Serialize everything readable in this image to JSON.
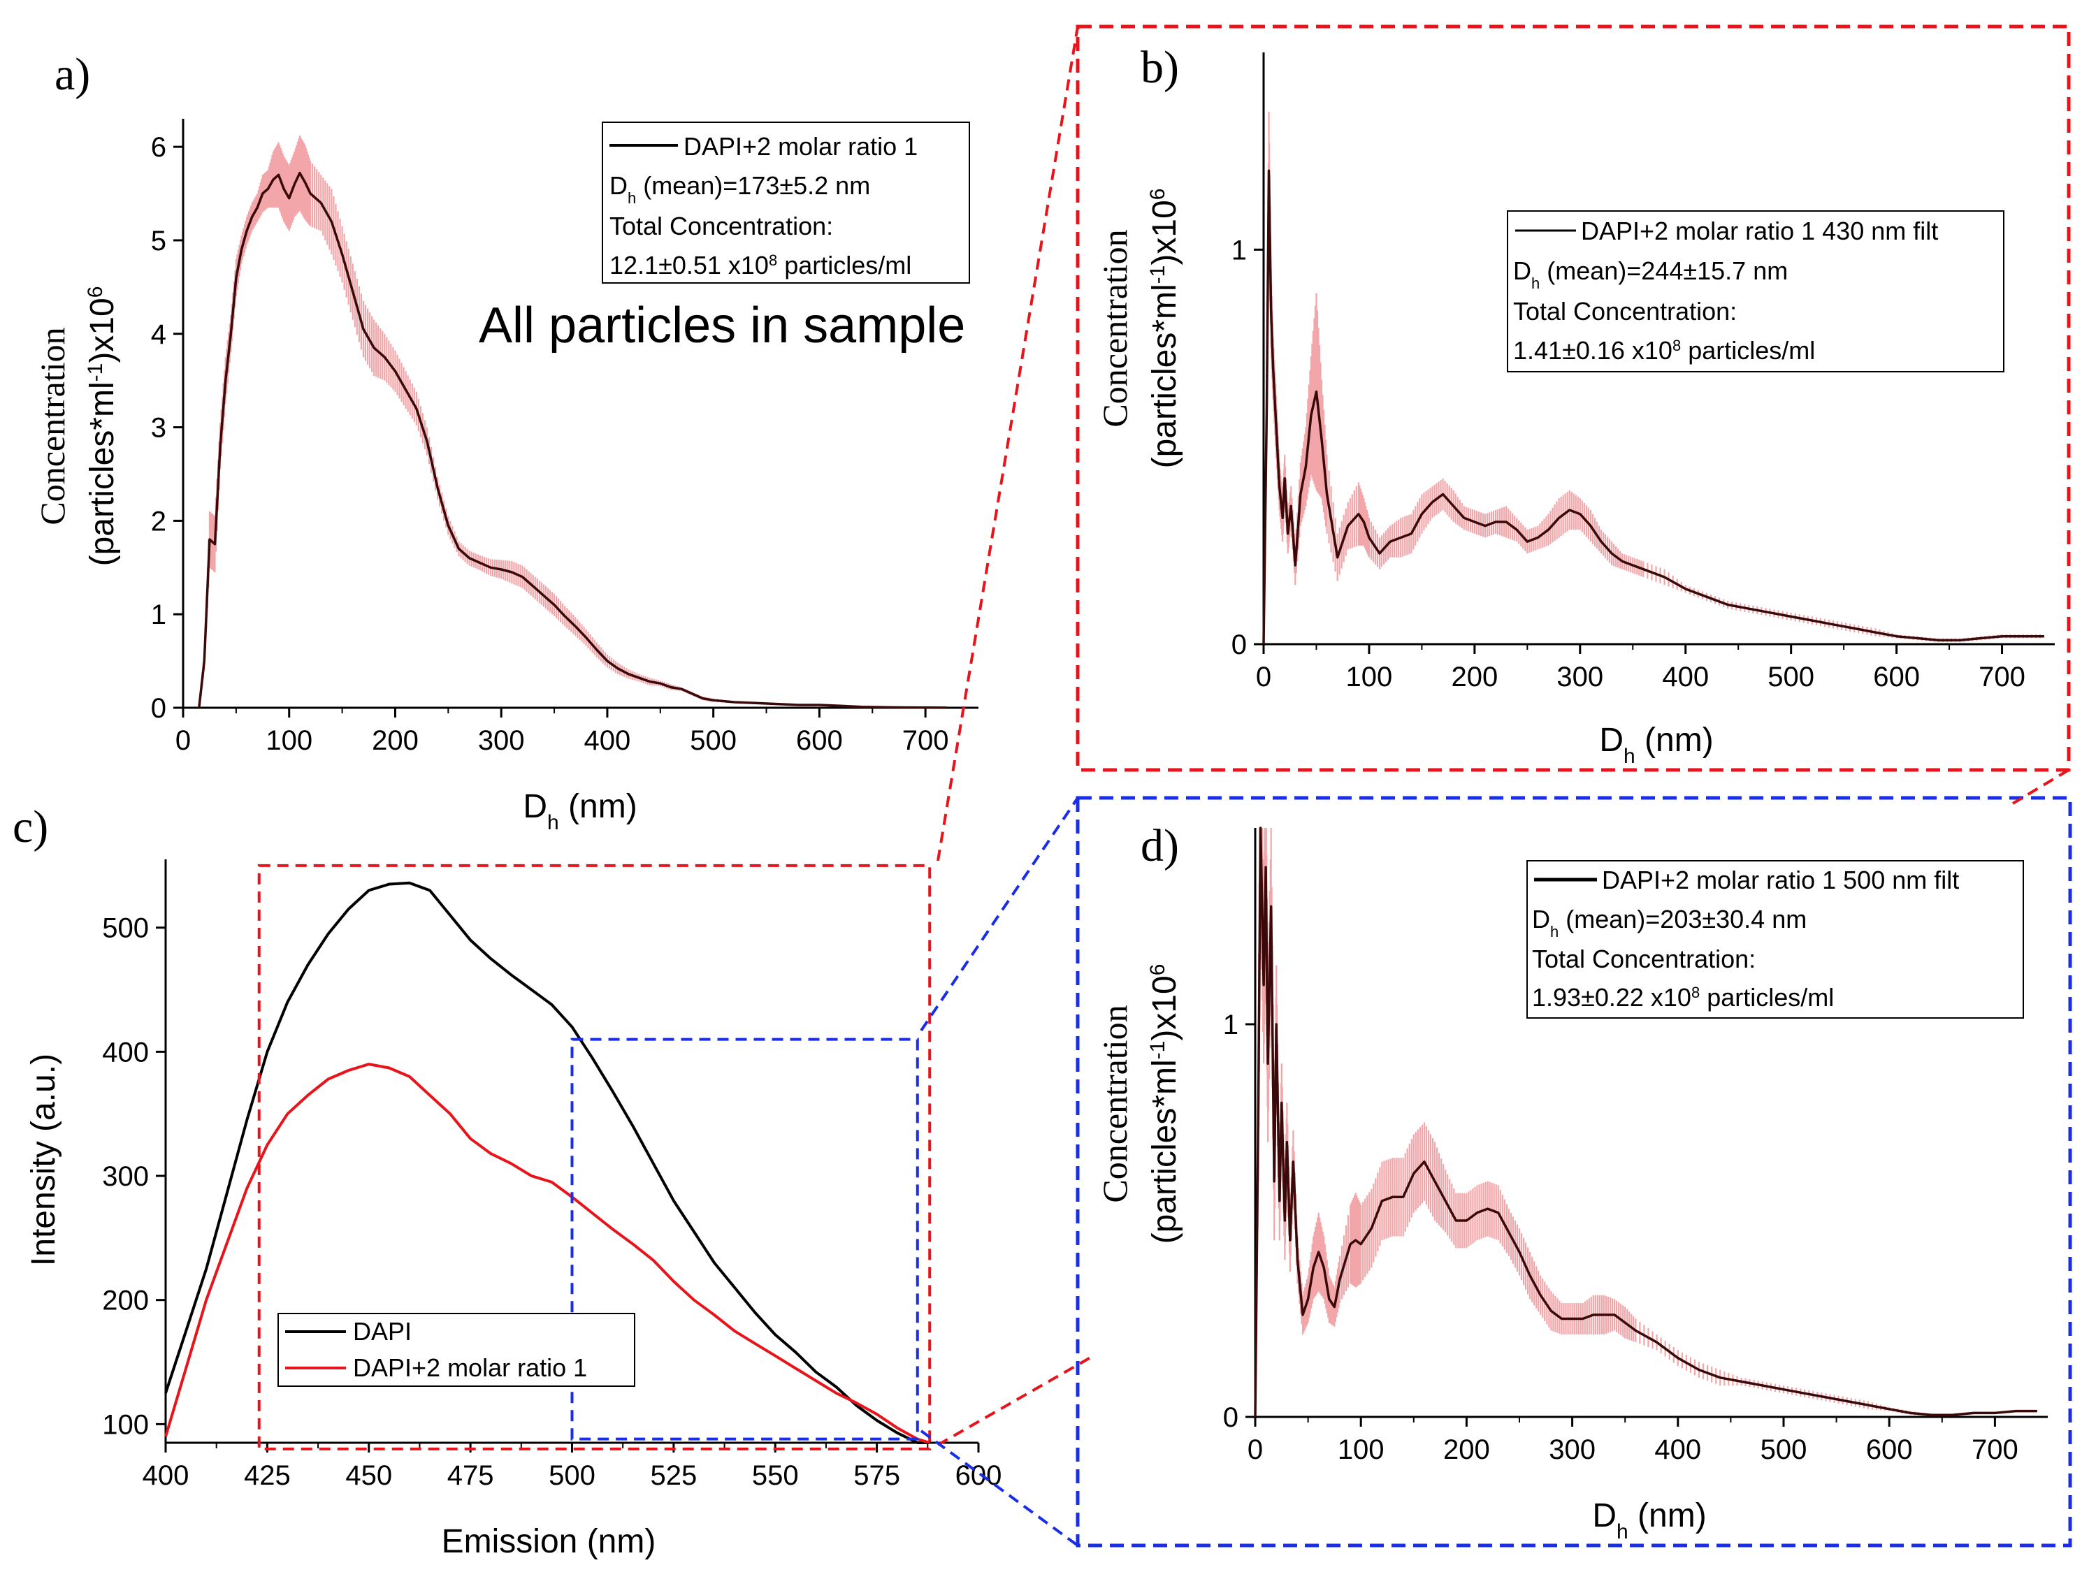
{
  "colors": {
    "red": "#e8141b",
    "blue": "#1a2ee8",
    "black": "#000000",
    "band": "#f3a6a9",
    "curve_dark": "#3a0a0a"
  },
  "chart_data": [
    {
      "id": "a",
      "type": "line",
      "panel_label": "a)",
      "xlabel_main": "D",
      "xlabel_sub": "h",
      "xlabel_unit": " (nm)",
      "ylabel_line1": "Concentration",
      "ylabel_line2_main": "(particles*ml",
      "ylabel_line2_sup1": "-1",
      "ylabel_line2_mid": ")x10",
      "ylabel_line2_sup2": "6",
      "xlim": [
        0,
        750
      ],
      "ylim": [
        0,
        6.3
      ],
      "xticks": [
        0,
        100,
        200,
        300,
        400,
        500,
        600,
        700
      ],
      "yticks": [
        0,
        1,
        2,
        3,
        4,
        5,
        6
      ],
      "annotation": "All particles in sample",
      "legend": {
        "series_name": "DAPI+2   molar ratio 1",
        "dh_prefix": "D",
        "dh_sub": "h",
        "dh_text": " (mean)=173±5.2 nm",
        "total_label": "Total Concentration:",
        "conc_main": "12.1±0.51 x10",
        "conc_sup": "8",
        "conc_unit": " particles/ml"
      },
      "series": [
        {
          "name": "DAPI+2 molar ratio 1",
          "x": [
            15,
            20,
            25,
            30,
            35,
            40,
            45,
            50,
            55,
            60,
            65,
            70,
            75,
            80,
            85,
            90,
            95,
            100,
            105,
            110,
            115,
            120,
            130,
            140,
            150,
            160,
            170,
            180,
            190,
            200,
            210,
            220,
            230,
            240,
            250,
            260,
            270,
            280,
            290,
            300,
            310,
            320,
            330,
            340,
            350,
            360,
            370,
            380,
            390,
            400,
            410,
            420,
            430,
            440,
            450,
            460,
            470,
            480,
            490,
            500,
            520,
            540,
            560,
            580,
            600,
            620,
            640,
            660,
            680,
            700,
            720
          ],
          "y": [
            0,
            0.5,
            1.8,
            1.75,
            2.8,
            3.5,
            4.0,
            4.6,
            4.9,
            5.1,
            5.25,
            5.35,
            5.5,
            5.55,
            5.65,
            5.7,
            5.55,
            5.45,
            5.6,
            5.72,
            5.62,
            5.5,
            5.4,
            5.2,
            4.85,
            4.45,
            4.05,
            3.85,
            3.75,
            3.6,
            3.4,
            3.2,
            2.85,
            2.35,
            1.95,
            1.7,
            1.6,
            1.55,
            1.5,
            1.48,
            1.45,
            1.4,
            1.3,
            1.2,
            1.1,
            0.98,
            0.87,
            0.75,
            0.62,
            0.5,
            0.42,
            0.36,
            0.32,
            0.28,
            0.26,
            0.22,
            0.2,
            0.15,
            0.1,
            0.08,
            0.06,
            0.05,
            0.04,
            0.03,
            0.03,
            0.02,
            0.01,
            0.005,
            0.003,
            0.002,
            0.001
          ],
          "err": [
            0.05,
            0.1,
            0.3,
            0.3,
            0.25,
            0.25,
            0.2,
            0.2,
            0.15,
            0.15,
            0.15,
            0.15,
            0.2,
            0.2,
            0.3,
            0.35,
            0.35,
            0.35,
            0.35,
            0.4,
            0.4,
            0.35,
            0.3,
            0.35,
            0.3,
            0.3,
            0.3,
            0.3,
            0.25,
            0.22,
            0.2,
            0.18,
            0.15,
            0.12,
            0.1,
            0.08,
            0.08,
            0.08,
            0.09,
            0.1,
            0.12,
            0.12,
            0.12,
            0.12,
            0.12,
            0.11,
            0.1,
            0.09,
            0.08,
            0.07,
            0.06,
            0.05,
            0.04,
            0.04,
            0.03,
            0.03,
            0.02,
            0.02,
            0.02,
            0.02,
            0.01,
            0.01,
            0.01,
            0.01,
            0.01,
            0.01,
            0.005,
            0.005,
            0.003,
            0.002,
            0.001
          ]
        }
      ]
    },
    {
      "id": "b",
      "type": "line",
      "panel_label": "b)",
      "xlabel_main": "D",
      "xlabel_sub": "h",
      "xlabel_unit": " (nm)",
      "ylabel_line1": "Concentration",
      "ylabel_line2_main": "(particles*ml",
      "ylabel_line2_sup1": "-1",
      "ylabel_line2_mid": ")x10",
      "ylabel_line2_sup2": "6",
      "xlim": [
        0,
        750
      ],
      "ylim": [
        0,
        1.5
      ],
      "xticks": [
        0,
        100,
        200,
        300,
        400,
        500,
        600,
        700
      ],
      "yticks": [
        0,
        1
      ],
      "legend": {
        "series_name": "DAPI+2   molar ratio 1 430 nm filt",
        "dh_prefix": "D",
        "dh_sub": "h",
        "dh_text": " (mean)=244±15.7 nm",
        "total_label": "Total Concentration:",
        "conc_main": "1.41±0.16 x10",
        "conc_sup": "8",
        "conc_unit": " particles/ml"
      },
      "series": [
        {
          "name": "DAPI+2 molar ratio 1 430 nm filt",
          "x": [
            0,
            3,
            5,
            7,
            9,
            12,
            15,
            18,
            20,
            23,
            26,
            30,
            35,
            40,
            45,
            50,
            55,
            60,
            70,
            80,
            90,
            95,
            100,
            110,
            120,
            130,
            140,
            150,
            160,
            170,
            180,
            190,
            200,
            210,
            220,
            230,
            240,
            250,
            260,
            270,
            280,
            290,
            300,
            310,
            320,
            330,
            340,
            350,
            360,
            380,
            400,
            420,
            440,
            460,
            480,
            500,
            520,
            540,
            560,
            580,
            600,
            620,
            640,
            660,
            680,
            700,
            720,
            740
          ],
          "y": [
            0,
            0.6,
            1.2,
            0.85,
            0.7,
            0.55,
            0.4,
            0.32,
            0.42,
            0.28,
            0.35,
            0.2,
            0.38,
            0.45,
            0.58,
            0.64,
            0.52,
            0.38,
            0.22,
            0.3,
            0.33,
            0.31,
            0.27,
            0.23,
            0.26,
            0.27,
            0.28,
            0.33,
            0.36,
            0.38,
            0.35,
            0.32,
            0.31,
            0.3,
            0.31,
            0.31,
            0.29,
            0.26,
            0.27,
            0.29,
            0.32,
            0.34,
            0.33,
            0.3,
            0.26,
            0.23,
            0.21,
            0.2,
            0.19,
            0.17,
            0.14,
            0.12,
            0.1,
            0.09,
            0.08,
            0.07,
            0.06,
            0.05,
            0.04,
            0.03,
            0.02,
            0.015,
            0.01,
            0.01,
            0.015,
            0.02,
            0.02,
            0.02
          ],
          "err": [
            0,
            0.1,
            0.15,
            0.1,
            0.08,
            0.08,
            0.06,
            0.06,
            0.06,
            0.05,
            0.05,
            0.05,
            0.08,
            0.1,
            0.15,
            0.25,
            0.15,
            0.1,
            0.06,
            0.06,
            0.08,
            0.06,
            0.05,
            0.04,
            0.04,
            0.05,
            0.05,
            0.05,
            0.04,
            0.04,
            0.04,
            0.03,
            0.03,
            0.03,
            0.03,
            0.04,
            0.03,
            0.03,
            0.03,
            0.04,
            0.05,
            0.05,
            0.04,
            0.04,
            0.03,
            0.03,
            0.02,
            0.02,
            0.02,
            0.02,
            0.01,
            0.01,
            0.01,
            0.01,
            0.01,
            0.01,
            0.01,
            0.01,
            0.01,
            0.01,
            0.005,
            0.005,
            0.005,
            0.005,
            0.005,
            0.005,
            0.005,
            0.005
          ]
        }
      ]
    },
    {
      "id": "c",
      "type": "line",
      "panel_label": "c)",
      "xlabel": "Emission (nm)",
      "ylabel": "Intensity (a.u.)",
      "xlim": [
        400,
        600
      ],
      "ylim": [
        85,
        555
      ],
      "xticks": [
        400,
        425,
        450,
        475,
        500,
        525,
        550,
        575,
        600
      ],
      "yticks": [
        100,
        200,
        300,
        400,
        500
      ],
      "legend_entries": [
        "DAPI",
        "DAPI+2   molar ratio 1"
      ],
      "series": [
        {
          "name": "DAPI",
          "color": "black",
          "x": [
            400,
            405,
            410,
            415,
            420,
            425,
            430,
            435,
            440,
            445,
            450,
            455,
            460,
            465,
            470,
            475,
            480,
            485,
            490,
            495,
            500,
            505,
            510,
            515,
            520,
            525,
            530,
            535,
            540,
            545,
            550,
            555,
            560,
            565,
            570,
            575,
            580,
            585,
            588
          ],
          "y": [
            125,
            175,
            225,
            285,
            345,
            400,
            440,
            470,
            495,
            515,
            530,
            535,
            536,
            530,
            510,
            490,
            475,
            462,
            450,
            438,
            420,
            395,
            368,
            340,
            310,
            280,
            255,
            230,
            210,
            190,
            172,
            158,
            142,
            130,
            115,
            103,
            93,
            84,
            80
          ]
        },
        {
          "name": "DAPI+2 molar ratio 1",
          "color": "red",
          "x": [
            400,
            405,
            410,
            415,
            420,
            425,
            430,
            435,
            440,
            445,
            450,
            455,
            460,
            465,
            470,
            475,
            480,
            485,
            490,
            495,
            500,
            505,
            510,
            515,
            520,
            525,
            530,
            535,
            540,
            545,
            550,
            555,
            560,
            565,
            570,
            575,
            580,
            585,
            588
          ],
          "y": [
            90,
            145,
            200,
            245,
            290,
            325,
            350,
            365,
            378,
            385,
            390,
            387,
            380,
            365,
            350,
            330,
            318,
            310,
            300,
            295,
            283,
            270,
            257,
            245,
            232,
            215,
            200,
            188,
            175,
            165,
            155,
            145,
            135,
            125,
            117,
            108,
            97,
            88,
            80
          ]
        }
      ],
      "overlays": [
        {
          "name": "red-zoom-box",
          "color": "red",
          "x": [
            423,
            588
          ],
          "y": [
            80,
            550
          ]
        },
        {
          "name": "blue-zoom-box",
          "color": "blue",
          "x": [
            500,
            585
          ],
          "y": [
            88,
            410
          ]
        }
      ]
    },
    {
      "id": "d",
      "type": "line",
      "panel_label": "d)",
      "xlabel_main": "D",
      "xlabel_sub": "h",
      "xlabel_unit": " (nm)",
      "ylabel_line1": "Concentration",
      "ylabel_line2_main": "(particles*ml",
      "ylabel_line2_sup1": "-1",
      "ylabel_line2_mid": ")x10",
      "ylabel_line2_sup2": "6",
      "xlim": [
        0,
        750
      ],
      "ylim": [
        0,
        1.5
      ],
      "xticks": [
        0,
        100,
        200,
        300,
        400,
        500,
        600,
        700
      ],
      "yticks": [
        0,
        1
      ],
      "legend": {
        "series_name": "DAPI+2   molar ratio 1 500 nm filt",
        "dh_prefix": "D",
        "dh_sub": "h",
        "dh_text": " (mean)=203±30.4 nm",
        "total_label": "Total Concentration:",
        "conc_main": "1.93±0.22 x10",
        "conc_sup": "8",
        "conc_unit": " particles/ml"
      },
      "series": [
        {
          "name": "DAPI+2 molar ratio 1 500 nm filt",
          "x": [
            0,
            3,
            5,
            8,
            10,
            12,
            15,
            18,
            20,
            23,
            25,
            28,
            30,
            33,
            36,
            40,
            45,
            50,
            55,
            60,
            65,
            70,
            75,
            80,
            90,
            95,
            100,
            110,
            120,
            130,
            140,
            150,
            160,
            170,
            180,
            190,
            200,
            210,
            220,
            230,
            240,
            250,
            260,
            270,
            280,
            290,
            300,
            310,
            320,
            330,
            340,
            350,
            360,
            380,
            400,
            420,
            440,
            460,
            480,
            500,
            520,
            540,
            560,
            580,
            600,
            620,
            640,
            660,
            680,
            700,
            720,
            740
          ],
          "y": [
            0,
            0.8,
            1.6,
            1.1,
            1.4,
            0.9,
            1.3,
            0.6,
            1.0,
            0.55,
            0.8,
            0.5,
            0.7,
            0.45,
            0.65,
            0.4,
            0.26,
            0.3,
            0.38,
            0.42,
            0.38,
            0.3,
            0.28,
            0.35,
            0.44,
            0.45,
            0.44,
            0.48,
            0.55,
            0.56,
            0.56,
            0.62,
            0.65,
            0.6,
            0.55,
            0.5,
            0.5,
            0.52,
            0.53,
            0.52,
            0.47,
            0.42,
            0.36,
            0.31,
            0.27,
            0.25,
            0.25,
            0.25,
            0.26,
            0.26,
            0.26,
            0.24,
            0.22,
            0.19,
            0.15,
            0.12,
            0.1,
            0.09,
            0.08,
            0.07,
            0.06,
            0.05,
            0.04,
            0.03,
            0.02,
            0.01,
            0.005,
            0.005,
            0.01,
            0.01,
            0.015,
            0.015
          ],
          "err": [
            0,
            0.2,
            0.3,
            0.2,
            0.25,
            0.2,
            0.2,
            0.15,
            0.15,
            0.1,
            0.1,
            0.1,
            0.1,
            0.08,
            0.08,
            0.06,
            0.05,
            0.06,
            0.08,
            0.1,
            0.08,
            0.06,
            0.05,
            0.06,
            0.1,
            0.12,
            0.1,
            0.1,
            0.1,
            0.1,
            0.1,
            0.1,
            0.1,
            0.1,
            0.08,
            0.07,
            0.07,
            0.07,
            0.07,
            0.07,
            0.06,
            0.06,
            0.06,
            0.05,
            0.05,
            0.04,
            0.04,
            0.04,
            0.05,
            0.05,
            0.04,
            0.04,
            0.03,
            0.02,
            0.02,
            0.02,
            0.02,
            0.01,
            0.01,
            0.01,
            0.01,
            0.01,
            0.01,
            0.01,
            0.005,
            0.005,
            0.003,
            0.003,
            0.003,
            0.003,
            0.003,
            0.003
          ]
        }
      ]
    }
  ]
}
